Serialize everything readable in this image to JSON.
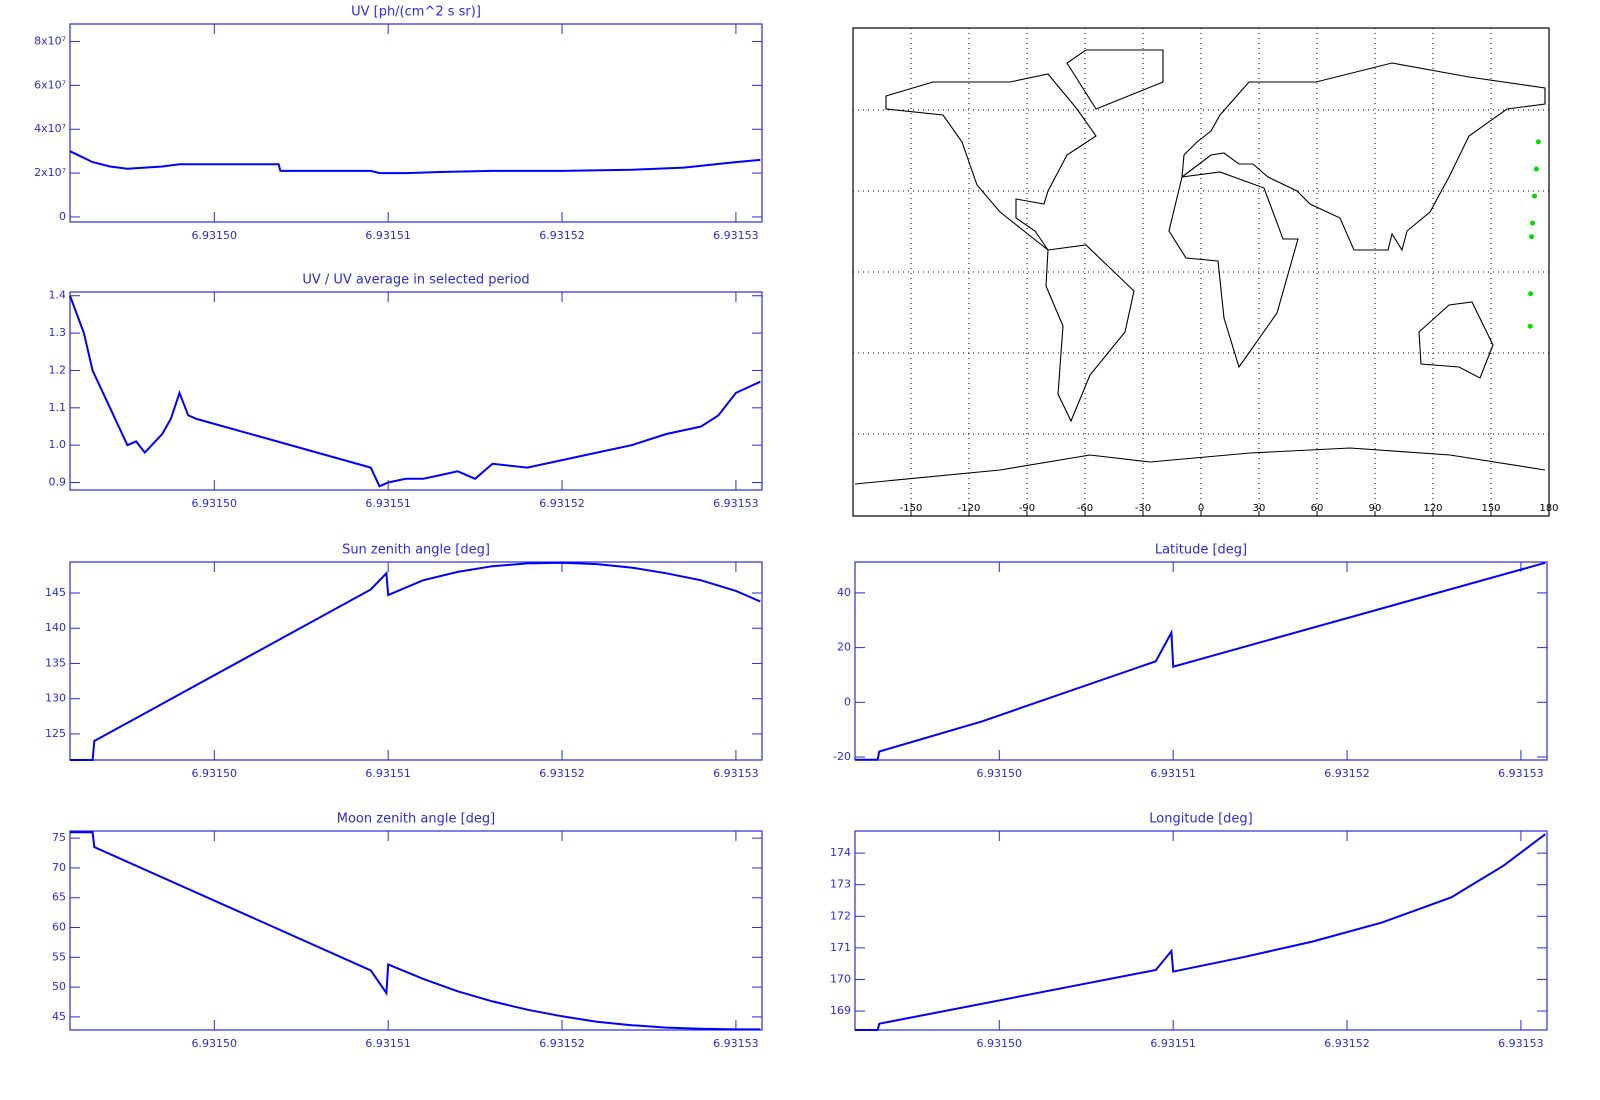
{
  "chart_data": [
    {
      "type": "line",
      "title": "UV [ph/(cm^2 s sr)]",
      "color": "#0000ff",
      "x": [
        6.9314917,
        6.931493,
        6.931494,
        6.931495,
        6.931496,
        6.931497,
        6.931498,
        6.9315037,
        6.9315038,
        6.931509,
        6.9315095,
        6.931511,
        6.931513,
        6.931516,
        6.93152,
        6.931524,
        6.931527,
        6.93153,
        6.9315314
      ],
      "values": [
        30000000,
        25000000,
        23000000,
        22000000,
        22500000,
        23000000,
        24000000,
        24000000,
        21000000,
        21000000,
        20000000,
        20000000,
        20500000,
        21000000,
        21000000,
        21500000,
        22500000,
        25000000,
        26000000
      ],
      "xlim": [
        6.9314917,
        6.9315315
      ],
      "ylim": [
        -2300000,
        88000000
      ],
      "xticks": [
        {
          "value": 6.9315,
          "label": "6.93150"
        },
        6.93151,
        6.93152,
        6.93153
      ],
      "yticks": [
        0,
        {
          "value": 20000000,
          "label": "2x10⁷"
        },
        {
          "value": 40000000,
          "label": "4x10⁷"
        },
        {
          "value": 60000000,
          "label": "6x10⁷"
        },
        {
          "value": 80000000,
          "label": "8x10⁷"
        }
      ]
    },
    {
      "type": "line",
      "title": "UV / UV average in selected period",
      "color": "#0000ff",
      "x": [
        6.9314917,
        6.9314925,
        6.931493,
        6.931494,
        6.9314945,
        6.931495,
        6.9314955,
        6.931496,
        6.931497,
        6.9314975,
        6.931498,
        6.9314985,
        6.931499,
        6.931509,
        6.9315095,
        6.93151,
        6.931511,
        6.931512,
        6.931513,
        6.931514,
        6.931515,
        6.931516,
        6.931518,
        6.93152,
        6.931522,
        6.931524,
        6.931526,
        6.931528,
        6.931529,
        6.93153,
        6.9315314
      ],
      "values": [
        1.4,
        1.3,
        1.2,
        1.1,
        1.05,
        1.0,
        1.01,
        0.98,
        1.03,
        1.07,
        1.14,
        1.08,
        1.07,
        0.94,
        0.89,
        0.9,
        0.91,
        0.91,
        0.92,
        0.93,
        0.91,
        0.95,
        0.94,
        0.96,
        0.98,
        1.0,
        1.03,
        1.05,
        1.08,
        1.14,
        1.17
      ],
      "xlim": [
        6.9314917,
        6.9315315
      ],
      "ylim": [
        0.88,
        1.41
      ],
      "xticks": [
        {
          "value": 6.9315,
          "label": "6.93150"
        },
        6.93151,
        6.93152,
        6.93153
      ],
      "yticks": [
        0.9,
        {
          "value": 1,
          "label": "1.0"
        },
        1.1,
        1.2,
        1.3,
        1.4
      ]
    },
    {
      "type": "line",
      "title": "Sun zenith angle [deg]",
      "color": "#0000ff",
      "x": [
        6.9314917,
        6.931493,
        6.9314931,
        6.931509,
        6.9315099,
        6.93151,
        6.931512,
        6.931514,
        6.931516,
        6.931518,
        6.93152,
        6.931522,
        6.931524,
        6.931526,
        6.931528,
        6.93153,
        6.9315314
      ],
      "values": [
        121.3,
        121.3,
        124,
        145.5,
        147.8,
        144.7,
        146.8,
        148,
        148.8,
        149.2,
        149.3,
        149.1,
        148.6,
        147.8,
        146.8,
        145.3,
        143.8
      ],
      "xlim": [
        6.9314917,
        6.9315315
      ],
      "ylim": [
        121.3,
        149.4
      ],
      "xticks": [
        {
          "value": 6.9315,
          "label": "6.93150"
        },
        6.93151,
        6.93152,
        6.93153
      ],
      "yticks": [
        125,
        130,
        135,
        140,
        145
      ]
    },
    {
      "type": "line",
      "title": "Moon zenith angle [deg]",
      "color": "#0000ff",
      "x": [
        6.9314917,
        6.931493,
        6.9314931,
        6.931509,
        6.9315099,
        6.93151,
        6.931512,
        6.931514,
        6.931516,
        6.931518,
        6.93152,
        6.931522,
        6.931524,
        6.931526,
        6.931528,
        6.93153,
        6.9315314
      ],
      "values": [
        76,
        76,
        73.5,
        52.8,
        49,
        53.8,
        51.4,
        49.3,
        47.6,
        46.2,
        45.1,
        44.2,
        43.6,
        43.2,
        43.0,
        42.9,
        42.9
      ],
      "xlim": [
        6.9314917,
        6.9315315
      ],
      "ylim": [
        42.8,
        76.2
      ],
      "xticks": [
        {
          "value": 6.9315,
          "label": "6.93150"
        },
        6.93151,
        6.93152,
        6.93153
      ],
      "yticks": [
        45,
        50,
        55,
        60,
        65,
        70,
        75
      ]
    },
    {
      "type": "map",
      "color": "#00dd00",
      "x": [
        174.5,
        173.5,
        172.5,
        171.5,
        171,
        171,
        170.5,
        170.3
      ],
      "values": [
        48,
        38,
        28,
        18,
        13,
        null,
        -8,
        -20
      ],
      "xlim": [
        -180,
        180
      ],
      "ylim": [
        -90,
        90
      ],
      "xticks": [
        -150,
        -120,
        -90,
        -60,
        -30,
        0,
        30,
        60,
        90,
        120,
        150,
        180
      ]
    },
    {
      "type": "line",
      "title": "Latitude [deg]",
      "color": "#0000ff",
      "x": [
        6.9314917,
        6.931493,
        6.9314931,
        6.931499,
        6.931509,
        6.9315099,
        6.93151,
        6.9315314
      ],
      "values": [
        -21,
        -21,
        -18,
        -7,
        15,
        25.5,
        13,
        51
      ],
      "xlim": [
        6.9314917,
        6.9315315
      ],
      "ylim": [
        -21.1,
        51.3
      ],
      "xticks": [
        {
          "value": 6.9315,
          "label": "6.93150"
        },
        6.93151,
        6.93152,
        6.93153
      ],
      "yticks": [
        -20,
        0,
        20,
        40
      ]
    },
    {
      "type": "line",
      "title": "Longitude [deg]",
      "color": "#0000ff",
      "x": [
        6.9314917,
        6.931493,
        6.9314931,
        6.931509,
        6.9315099,
        6.93151,
        6.931514,
        6.931518,
        6.931522,
        6.931526,
        6.931529,
        6.9315314
      ],
      "values": [
        168.4,
        168.4,
        168.6,
        170.3,
        170.9,
        170.25,
        170.7,
        171.2,
        171.8,
        172.6,
        173.6,
        174.6
      ],
      "xlim": [
        6.9314917,
        6.9315315
      ],
      "ylim": [
        168.4,
        174.7
      ],
      "xticks": [
        {
          "value": 6.9315,
          "label": "6.93150"
        },
        6.93151,
        6.93152,
        6.93153
      ],
      "yticks": [
        169,
        170,
        171,
        172,
        173,
        174
      ]
    }
  ]
}
